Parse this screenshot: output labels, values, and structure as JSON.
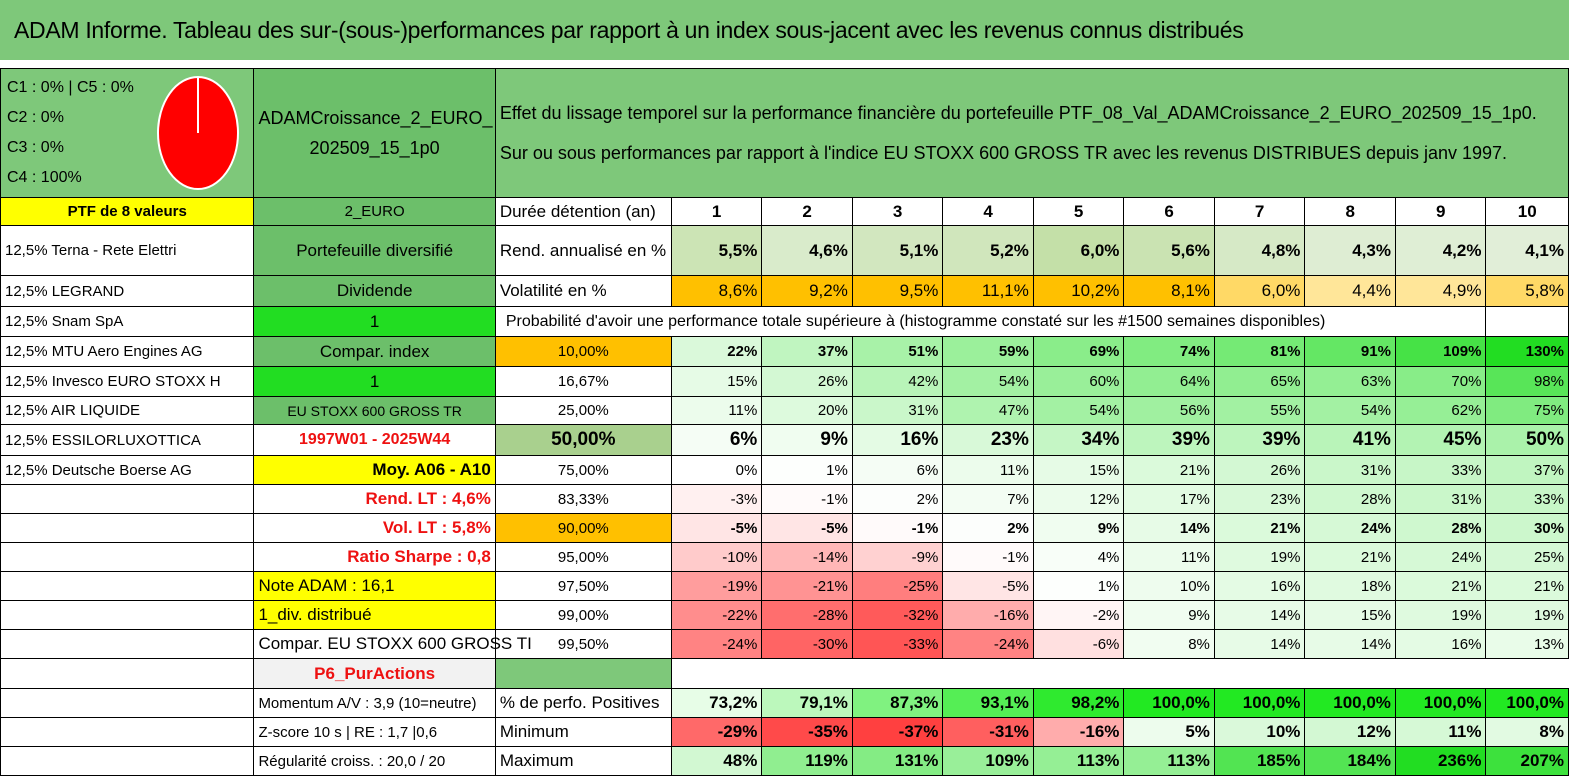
{
  "title": "ADAM Informe. Tableau des sur-(sous-)performances par rapport à un index sous-jacent avec les revenus connus distribués",
  "legend": [
    "C1 : 0% | C5 : 0%",
    "C2 : 0%",
    "C3 : 0%",
    "C4 : 100%"
  ],
  "portfolio_name_1": "ADAMCroissance_2_EURO_",
  "portfolio_name_2": "202509_15_1p0",
  "header_line1": "Effet du lissage temporel sur la performance financière du portefeuille PTF_08_Val_ADAMCroissance_2_EURO_202509_15_1p0.",
  "header_line2": "Sur ou sous performances par rapport à l'indice EU STOXX 600 GROSS TR avec les revenus DISTRIBUES depuis janv 1997.",
  "ptf_count": "PTF de 8 valeurs",
  "holdings": [
    "12,5% Terna - Rete Elettri",
    "12,5% LEGRAND",
    "12,5% Snam SpA",
    "12,5% MTU Aero Engines AG",
    "12,5% Invesco EURO STOXX H",
    "12,5% AIR LIQUIDE",
    "12,5% ESSILORLUXOTTICA",
    "12,5% Deutsche Boerse AG"
  ],
  "info": {
    "currency": "2_EURO",
    "portfolio_type": "Portefeuille diversifié",
    "dividend_label": "Dividende",
    "dividend_value": "1",
    "compar_index_label": "Compar. index",
    "compar_index_value": "1",
    "index_name": "EU STOXX 600 GROSS TR",
    "period": "1997W01 - 2025W44",
    "moy": "Moy. A06 - A10",
    "rend_lt": "Rend. LT : 4,6%",
    "vol_lt": "Vol. LT : 5,8%",
    "sharpe": "Ratio Sharpe : 0,8",
    "note": "Note ADAM : 16,1",
    "div": "1_div. distribué",
    "compar": "Compar. EU STOXX 600 GROSS TI",
    "p6": "P6_PurActions",
    "momentum": "Momentum A/V : 3,9 (10=neutre)",
    "zscore": "Z-score 10 s | RE : 1,7 |0,6",
    "regularite": "Régularité croiss. : 20,0 / 20"
  },
  "duration_label": "Durée détention (an)",
  "years": [
    "1",
    "2",
    "3",
    "4",
    "5",
    "6",
    "7",
    "8",
    "9",
    "10"
  ],
  "rend_label": "Rend. annualisé en %",
  "rend": [
    "5,5%",
    "4,6%",
    "5,1%",
    "5,2%",
    "6,0%",
    "5,6%",
    "4,8%",
    "4,3%",
    "4,2%",
    "4,1%"
  ],
  "vol_label": "Volatilité en %",
  "vol": [
    "8,6%",
    "9,2%",
    "9,5%",
    "11,1%",
    "10,2%",
    "8,1%",
    "6,0%",
    "4,4%",
    "4,9%",
    "5,8%"
  ],
  "proba_label": "Probabilité d'avoir une performance totale supérieure à (histogramme constaté sur les #1500 semaines disponibles)",
  "quantile_rows": [
    {
      "q": "10,00%",
      "v": [
        "22%",
        "37%",
        "51%",
        "59%",
        "69%",
        "74%",
        "81%",
        "91%",
        "109%",
        "130%"
      ]
    },
    {
      "q": "16,67%",
      "v": [
        "15%",
        "26%",
        "42%",
        "54%",
        "60%",
        "64%",
        "65%",
        "63%",
        "70%",
        "98%"
      ]
    },
    {
      "q": "25,00%",
      "v": [
        "11%",
        "20%",
        "31%",
        "47%",
        "54%",
        "56%",
        "55%",
        "54%",
        "62%",
        "75%"
      ]
    },
    {
      "q": "50,00%",
      "v": [
        "6%",
        "9%",
        "16%",
        "23%",
        "34%",
        "39%",
        "39%",
        "41%",
        "45%",
        "50%"
      ]
    },
    {
      "q": "75,00%",
      "v": [
        "0%",
        "1%",
        "6%",
        "11%",
        "15%",
        "21%",
        "26%",
        "31%",
        "33%",
        "37%"
      ]
    },
    {
      "q": "83,33%",
      "v": [
        "-3%",
        "-1%",
        "2%",
        "7%",
        "12%",
        "17%",
        "23%",
        "28%",
        "31%",
        "33%"
      ]
    },
    {
      "q": "90,00%",
      "v": [
        "-5%",
        "-5%",
        "-1%",
        "2%",
        "9%",
        "14%",
        "21%",
        "24%",
        "28%",
        "30%"
      ]
    },
    {
      "q": "95,00%",
      "v": [
        "-10%",
        "-14%",
        "-9%",
        "-1%",
        "4%",
        "11%",
        "19%",
        "21%",
        "24%",
        "25%"
      ]
    },
    {
      "q": "97,50%",
      "v": [
        "-19%",
        "-21%",
        "-25%",
        "-5%",
        "1%",
        "10%",
        "16%",
        "18%",
        "21%",
        "21%"
      ]
    },
    {
      "q": "99,00%",
      "v": [
        "-22%",
        "-28%",
        "-32%",
        "-16%",
        "-2%",
        "9%",
        "14%",
        "15%",
        "19%",
        "19%"
      ]
    },
    {
      "q": "99,50%",
      "v": [
        "-24%",
        "-30%",
        "-33%",
        "-24%",
        "-6%",
        "8%",
        "14%",
        "14%",
        "16%",
        "13%"
      ]
    }
  ],
  "pos_label": "% de perfo. Positives",
  "pos": [
    "73,2%",
    "79,1%",
    "87,3%",
    "93,1%",
    "98,2%",
    "100,0%",
    "100,0%",
    "100,0%",
    "100,0%",
    "100,0%"
  ],
  "min_label": "Minimum",
  "min": [
    "-29%",
    "-35%",
    "-37%",
    "-31%",
    "-16%",
    "5%",
    "10%",
    "12%",
    "11%",
    "8%"
  ],
  "max_label": "Maximum",
  "max": [
    "48%",
    "119%",
    "131%",
    "109%",
    "113%",
    "113%",
    "185%",
    "184%",
    "236%",
    "207%"
  ],
  "colors": {
    "title_green": "#7ec87a",
    "positive_green": "#22dd22",
    "negative_red": "#f04040",
    "orange": "#ffc000",
    "yellow": "#ffff00"
  }
}
